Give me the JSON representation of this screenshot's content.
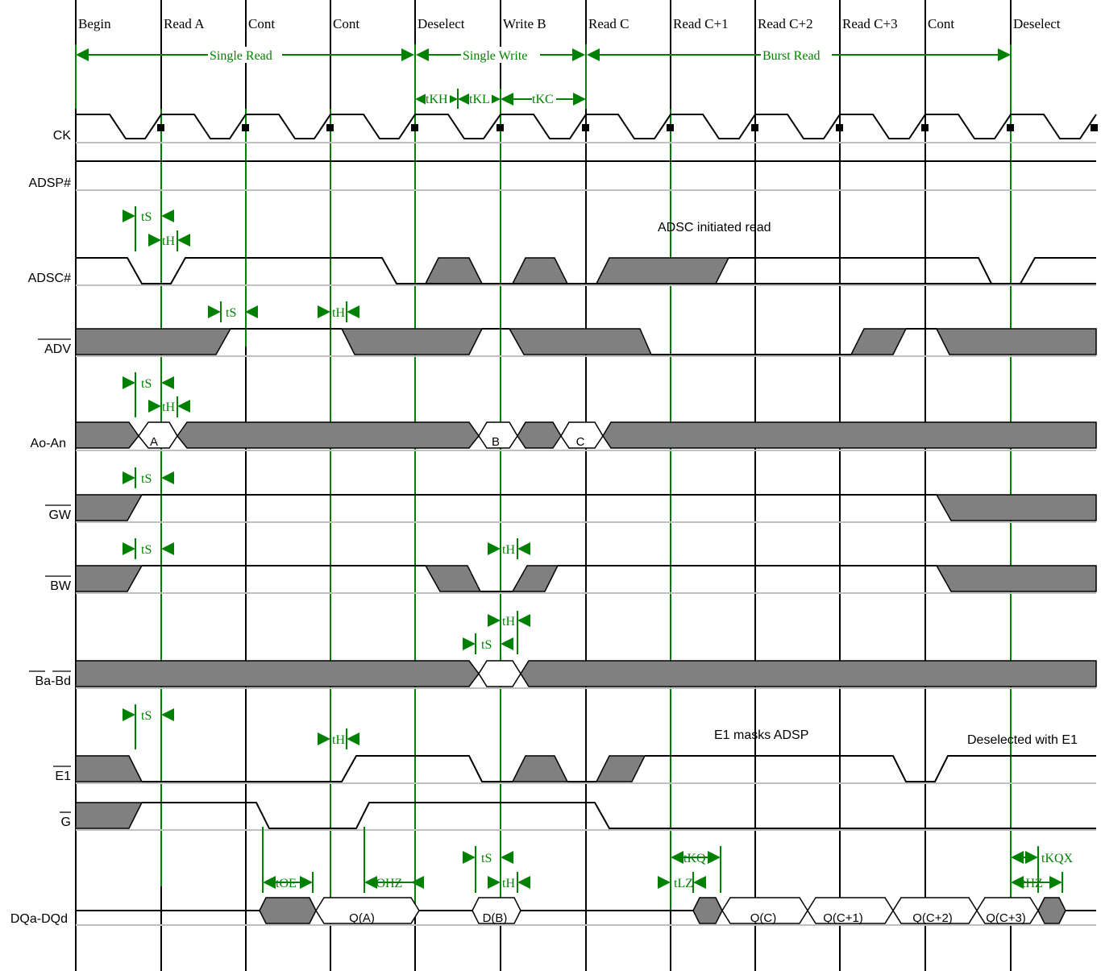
{
  "columns": [
    "Begin",
    "Read A",
    "Cont",
    "Cont",
    "Deselect",
    "Write B",
    "Read C",
    "Read C+1",
    "Read C+2",
    "Read C+3",
    "Cont",
    "Deselect"
  ],
  "phases": [
    "Single Read",
    "Single Write",
    "Burst Read"
  ],
  "signals": {
    "ck": "CK",
    "adsp": "ADSP#",
    "adsc": "ADSC#",
    "adv": "ADV",
    "addr": "Ao-An",
    "gw": "GW",
    "bw": "BW",
    "ba": "Ba",
    "bd": "Bd",
    "ba_sep": "-",
    "e1": "E1",
    "g": "G",
    "dq": "DQa-DQd"
  },
  "timing": {
    "tS": "tS",
    "tH": "tH",
    "tKH": "tKH",
    "tKL": "tKL",
    "tKC": "tKC",
    "tOE": "tOE",
    "tOHZ": "tOHZ",
    "tKQ": "tKQ",
    "tLZ": "tLZ",
    "tKQX": "tKQX",
    "tHZ": "tHZ"
  },
  "bus": {
    "a": "A",
    "b": "B",
    "c": "C",
    "qa": "Q(A)",
    "db": "D(B)",
    "qc": "Q(C)",
    "qc1": "Q(C+1)",
    "qc2": "Q(C+2)",
    "qc3": "Q(C+3)"
  },
  "notes": {
    "adsc_read": "ADSC initiated read",
    "e1_mask": "E1 masks ADSP",
    "deselect_e1": "Deselected with E1"
  },
  "colors": {
    "grid": "#000000",
    "timing": "#008000",
    "fill": "#808080",
    "baseline": "#c0c0c0"
  }
}
